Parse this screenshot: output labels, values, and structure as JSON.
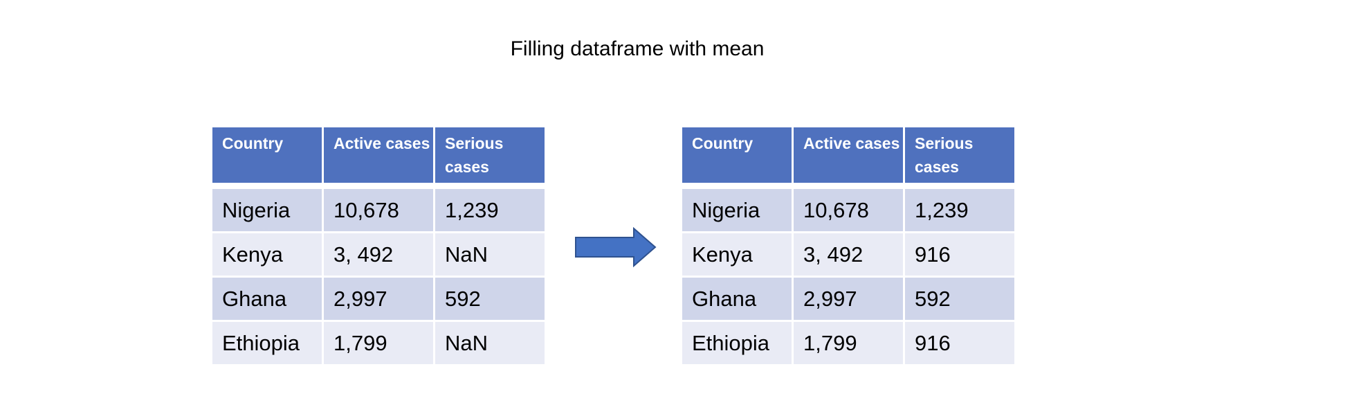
{
  "title": "Filling dataframe with mean",
  "colors": {
    "header": "#4F71BE",
    "row_odd": "#CFD5EA",
    "row_even": "#E9EBF5",
    "arrow": "#4472C4"
  },
  "arrow_icon": "right-arrow",
  "left_table": {
    "headers": [
      "Country",
      "Active cases",
      "Serious cases"
    ],
    "rows": [
      [
        "Nigeria",
        "10,678",
        "1,239"
      ],
      [
        "Kenya",
        "3, 492",
        "NaN"
      ],
      [
        "Ghana",
        "2,997",
        "592"
      ],
      [
        "Ethiopia",
        "1,799",
        "NaN"
      ]
    ]
  },
  "right_table": {
    "headers": [
      "Country",
      "Active cases",
      "Serious cases"
    ],
    "rows": [
      [
        "Nigeria",
        "10,678",
        "1,239"
      ],
      [
        "Kenya",
        "3, 492",
        "916"
      ],
      [
        "Ghana",
        "2,997",
        "592"
      ],
      [
        "Ethiopia",
        "1,799",
        "916"
      ]
    ]
  }
}
